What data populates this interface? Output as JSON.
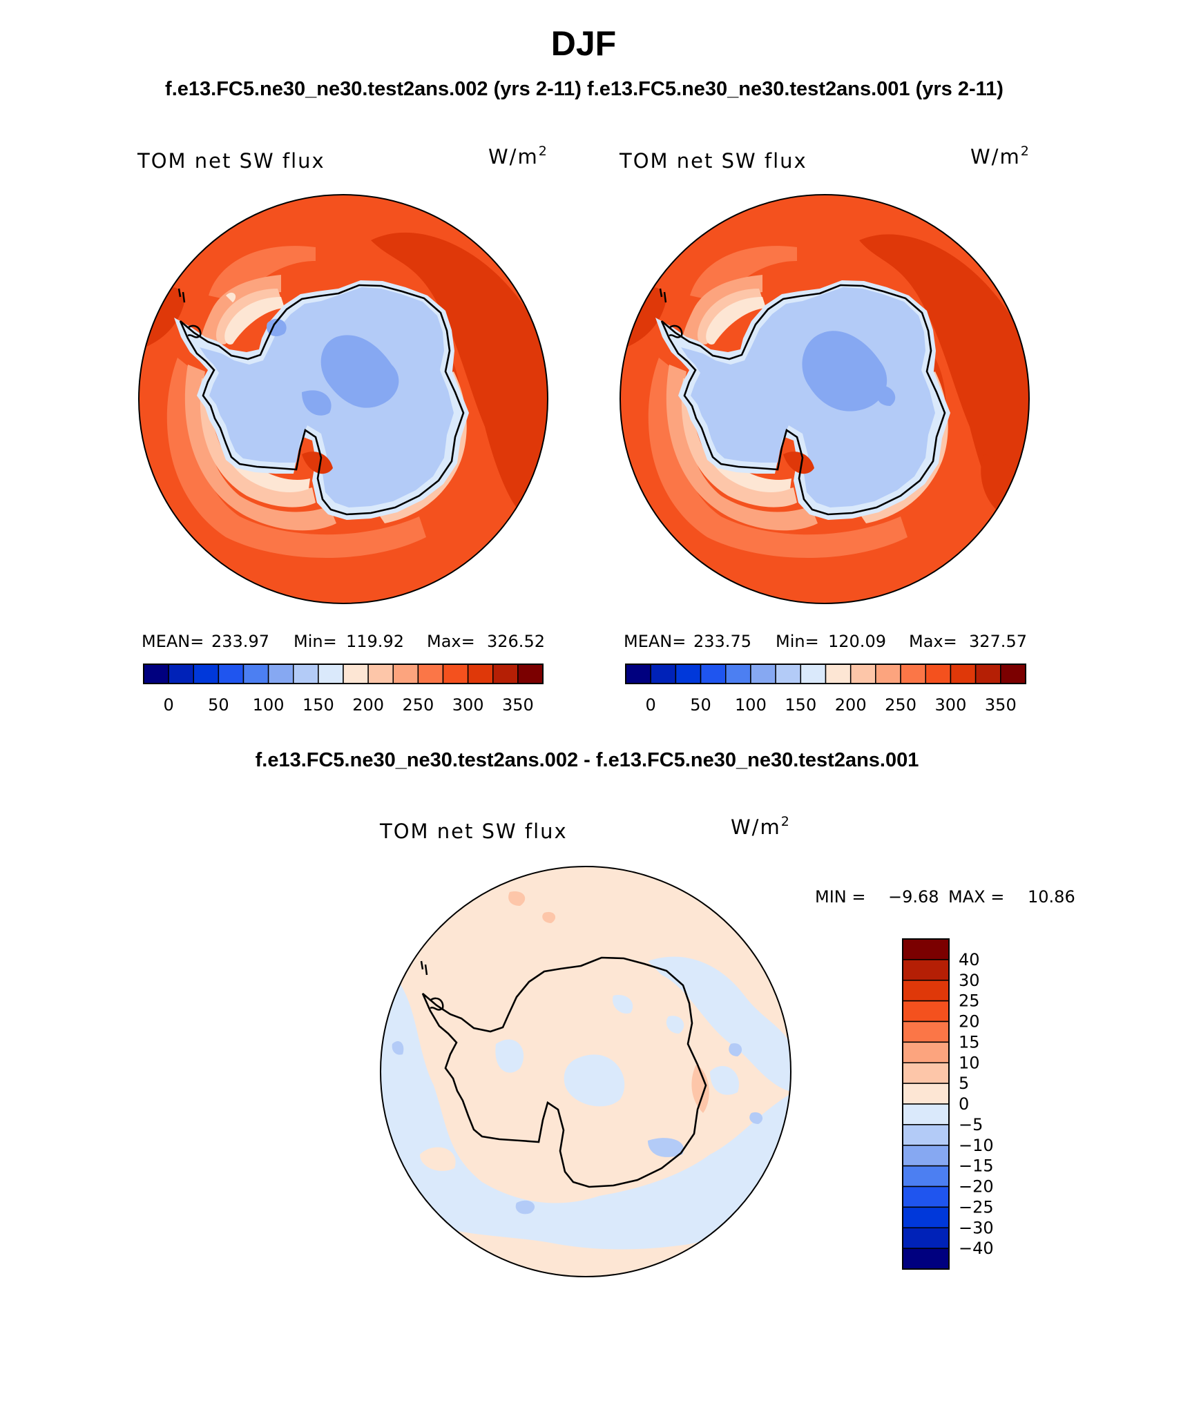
{
  "figure": {
    "season": "DJF",
    "header": "f.e13.FC5.ne30_ne30.test2ans.002 (yrs 2-11) f.e13.FC5.ne30_ne30.test2ans.001 (yrs 2-11)",
    "diff_title": "f.e13.FC5.ne30_ne30.test2ans.002 - f.e13.FC5.ne30_ne30.test2ans.001"
  },
  "chart_data": [
    {
      "type": "heatmap",
      "projection": "south-polar-stereographic",
      "variable": "TOM net SW flux",
      "units_base": "W/m",
      "units_exp": "2",
      "stats": {
        "mean_label": "MEAN=",
        "mean": "233.97",
        "min_label": "Min=",
        "min": "119.92",
        "max_label": "Max=",
        "max": "326.52"
      },
      "colorbar": {
        "orientation": "horizontal",
        "tick_labels": [
          "0",
          "50",
          "100",
          "150",
          "200",
          "250",
          "300",
          "350"
        ],
        "colors": [
          "#00007f",
          "#0022b8",
          "#0038da",
          "#1f55ef",
          "#4c7ff2",
          "#86a8f2",
          "#b3cbf7",
          "#dae9fb",
          "#fde6d4",
          "#fdc6a9",
          "#fca47e",
          "#fb7647",
          "#f4511e",
          "#df3809",
          "#b51f05",
          "#7b0000"
        ]
      }
    },
    {
      "type": "heatmap",
      "projection": "south-polar-stereographic",
      "variable": "TOM net SW flux",
      "units_base": "W/m",
      "units_exp": "2",
      "stats": {
        "mean_label": "MEAN=",
        "mean": "233.75",
        "min_label": "Min=",
        "min": "120.09",
        "max_label": "Max=",
        "max": "327.57"
      },
      "colorbar": {
        "orientation": "horizontal",
        "tick_labels": [
          "0",
          "50",
          "100",
          "150",
          "200",
          "250",
          "300",
          "350"
        ],
        "colors": [
          "#00007f",
          "#0022b8",
          "#0038da",
          "#1f55ef",
          "#4c7ff2",
          "#86a8f2",
          "#b3cbf7",
          "#dae9fb",
          "#fde6d4",
          "#fdc6a9",
          "#fca47e",
          "#fb7647",
          "#f4511e",
          "#df3809",
          "#b51f05",
          "#7b0000"
        ]
      }
    },
    {
      "type": "heatmap",
      "projection": "south-polar-stereographic",
      "variable": "TOM net SW flux",
      "units_base": "W/m",
      "units_exp": "2",
      "stats": {
        "min_label": "MIN =",
        "min": "−9.68",
        "max_label": "MAX =",
        "max": "10.86"
      },
      "colorbar": {
        "orientation": "vertical",
        "tick_labels": [
          "40",
          "30",
          "25",
          "20",
          "15",
          "10",
          "5",
          "0",
          "−5",
          "−10",
          "−15",
          "−20",
          "−25",
          "−30",
          "−40"
        ],
        "colors": [
          "#7b0000",
          "#b51f05",
          "#df3809",
          "#f4511e",
          "#fb7647",
          "#fca47e",
          "#fdc6a9",
          "#fde6d4",
          "#dae9fb",
          "#b3cbf7",
          "#86a8f2",
          "#4c7ff2",
          "#1f55ef",
          "#0038da",
          "#0022b8",
          "#00007f"
        ]
      }
    }
  ]
}
